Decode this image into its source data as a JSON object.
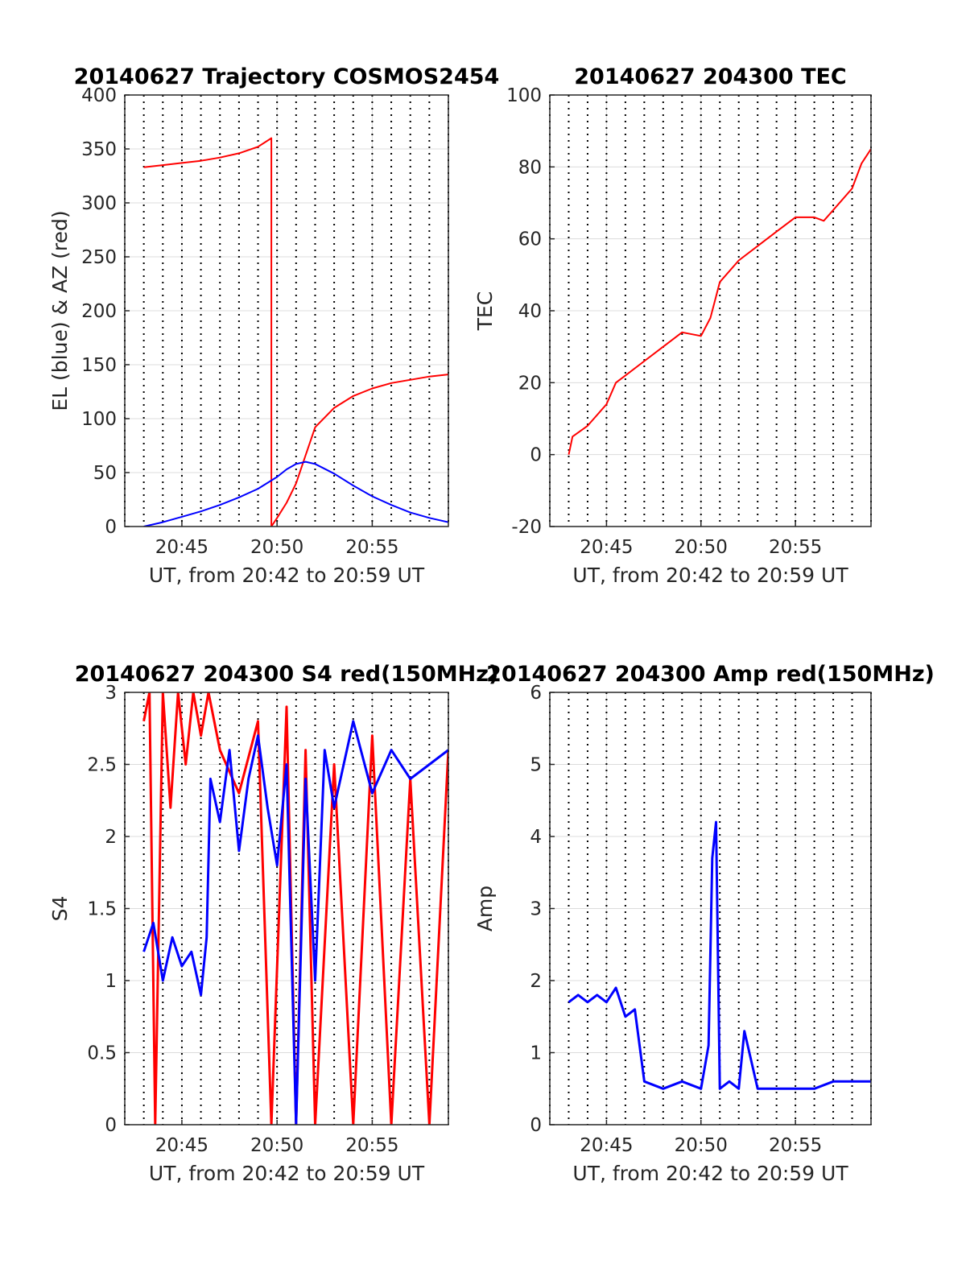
{
  "chart_data": [
    {
      "type": "line",
      "title": "20140627 Trajectory COSMOS2454",
      "xlabel": "UT, from 20:42 to 20:59 UT",
      "ylabel": "EL (blue) & AZ (red)",
      "xlim": [
        "20:42",
        "20:59"
      ],
      "ylim": [
        0,
        400
      ],
      "yticks": [
        0,
        50,
        100,
        150,
        200,
        250,
        300,
        350,
        400
      ],
      "xticks": [
        "20:45",
        "20:50",
        "20:55"
      ],
      "grid": true,
      "series": [
        {
          "color": "#ff0000",
          "x": [
            "20:43",
            "20:44",
            "20:45",
            "20:46",
            "20:47",
            "20:48",
            "20:49",
            "20:49.7",
            "20:49.7",
            "20:50",
            "20:50.5",
            "20:51",
            "20:51.5",
            "20:52",
            "20:53",
            "20:54",
            "20:55",
            "20:56",
            "20:57",
            "20:58",
            "20:59"
          ],
          "values": [
            333,
            335,
            337,
            339,
            342,
            346,
            352,
            360,
            0,
            8,
            22,
            40,
            66,
            92,
            110,
            121,
            128,
            133,
            136,
            139,
            141
          ]
        },
        {
          "color": "#0000ff",
          "x": [
            "20:43",
            "20:44",
            "20:45",
            "20:46",
            "20:47",
            "20:48",
            "20:49",
            "20:50",
            "20:50.5",
            "20:51",
            "20:51.5",
            "20:52",
            "20:53",
            "20:54",
            "20:55",
            "20:56",
            "20:57",
            "20:58",
            "20:59"
          ],
          "values": [
            0,
            4,
            9,
            14,
            20,
            27,
            35,
            46,
            53,
            58,
            60,
            58,
            49,
            38,
            28,
            20,
            13,
            8,
            4
          ]
        }
      ]
    },
    {
      "type": "line",
      "title": "20140627 204300 TEC",
      "xlabel": "UT, from 20:42 to 20:59 UT",
      "ylabel": "TEC",
      "xlim": [
        "20:42",
        "20:59"
      ],
      "ylim": [
        -20,
        100
      ],
      "yticks": [
        -20,
        0,
        20,
        40,
        60,
        80,
        100
      ],
      "xticks": [
        "20:45",
        "20:50",
        "20:55"
      ],
      "grid": true,
      "series": [
        {
          "color": "#ff0000",
          "x": [
            "20:43",
            "20:43.2",
            "20:44",
            "20:44.5",
            "20:45",
            "20:45.5",
            "20:46",
            "20:47",
            "20:48",
            "20:49",
            "20:50",
            "20:50.5",
            "20:51",
            "20:52",
            "20:53",
            "20:54",
            "20:55",
            "20:56",
            "20:56.5",
            "20:57",
            "20:58",
            "20:58.5",
            "20:59"
          ],
          "values": [
            0,
            5,
            8,
            11,
            14,
            20,
            22,
            26,
            30,
            34,
            33,
            38,
            48,
            54,
            58,
            62,
            66,
            66,
            65,
            68,
            74,
            81,
            85
          ]
        }
      ]
    },
    {
      "type": "line",
      "title": "20140627 204300 S4 red(150MHz)",
      "xlabel": "UT, from 20:42 to 20:59 UT",
      "ylabel": "S4",
      "xlim": [
        "20:42",
        "20:59"
      ],
      "ylim": [
        0,
        3
      ],
      "yticks": [
        0,
        0.5,
        1,
        1.5,
        2,
        2.5,
        3
      ],
      "xticks": [
        "20:45",
        "20:50",
        "20:55"
      ],
      "grid": true,
      "series": [
        {
          "color": "#ff0000",
          "x": [
            "20:43",
            "20:43.3",
            "20:43.6",
            "20:44",
            "20:44.4",
            "20:44.8",
            "20:45.2",
            "20:45.6",
            "20:46",
            "20:46.4",
            "20:47",
            "20:48",
            "20:49",
            "20:49.7",
            "20:50.5",
            "20:51",
            "20:51.5",
            "20:52",
            "20:53",
            "20:54",
            "20:55",
            "20:56",
            "20:57",
            "20:58",
            "20:59"
          ],
          "values": [
            2.8,
            3,
            0,
            3,
            2.2,
            3,
            2.5,
            3,
            2.7,
            3,
            2.6,
            2.3,
            2.8,
            0,
            2.9,
            0,
            2.6,
            0,
            2.5,
            0,
            2.7,
            0,
            2.4,
            0,
            2.6
          ]
        },
        {
          "color": "#0000ff",
          "x": [
            "20:43",
            "20:43.5",
            "20:44",
            "20:44.5",
            "20:45",
            "20:45.5",
            "20:46",
            "20:46.3",
            "20:46.5",
            "20:47",
            "20:47.5",
            "20:48",
            "20:48.5",
            "20:49",
            "20:49.5",
            "20:50",
            "20:50.5",
            "20:51",
            "20:51.5",
            "20:52",
            "20:52.5",
            "20:53",
            "20:54",
            "20:55",
            "20:56",
            "20:57",
            "20:58",
            "20:59"
          ],
          "values": [
            1.2,
            1.4,
            1.0,
            1.3,
            1.1,
            1.2,
            0.9,
            1.3,
            2.4,
            2.1,
            2.6,
            1.9,
            2.4,
            2.7,
            2.2,
            1.8,
            2.5,
            0,
            2.4,
            1.0,
            2.6,
            2.2,
            2.8,
            2.3,
            2.6,
            2.4,
            2.5,
            2.6
          ]
        }
      ]
    },
    {
      "type": "line",
      "title": "20140627 204300 Amp red(150MHz)",
      "xlabel": "UT, from 20:42 to 20:59 UT",
      "ylabel": "Amp",
      "xlim": [
        "20:42",
        "20:59"
      ],
      "ylim": [
        0,
        6
      ],
      "yticks": [
        0,
        1,
        2,
        3,
        4,
        5,
        6
      ],
      "xticks": [
        "20:45",
        "20:50",
        "20:55"
      ],
      "grid": true,
      "series": [
        {
          "color": "#0000ff",
          "x": [
            "20:43",
            "20:43.5",
            "20:44",
            "20:44.5",
            "20:45",
            "20:45.5",
            "20:46",
            "20:46.5",
            "20:47",
            "20:48",
            "20:49",
            "20:50",
            "20:50.4",
            "20:50.6",
            "20:50.8",
            "20:51",
            "20:51.5",
            "20:52",
            "20:52.3",
            "20:53",
            "20:54",
            "20:55",
            "20:56",
            "20:57",
            "20:58",
            "20:59"
          ],
          "values": [
            1.7,
            1.8,
            1.7,
            1.8,
            1.7,
            1.9,
            1.5,
            1.6,
            0.6,
            0.5,
            0.6,
            0.5,
            1.1,
            3.7,
            4.2,
            0.5,
            0.6,
            0.5,
            1.3,
            0.5,
            0.5,
            0.5,
            0.5,
            0.6,
            0.6,
            0.6
          ]
        }
      ]
    }
  ]
}
